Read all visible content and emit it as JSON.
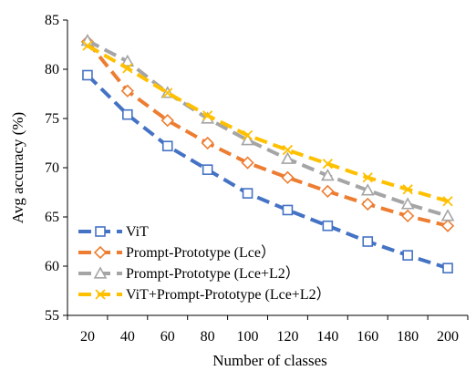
{
  "chart_data": {
    "type": "line",
    "title": "",
    "xlabel": "Number of classes",
    "ylabel": "Avg accuracy (%)",
    "x": [
      20,
      40,
      60,
      80,
      100,
      120,
      140,
      160,
      180,
      200
    ],
    "x_tick_labels": [
      "20",
      "40",
      "60",
      "80",
      "100",
      "120",
      "140",
      "160",
      "180",
      "200"
    ],
    "ylim": [
      55,
      85
    ],
    "y_ticks": [
      55,
      60,
      65,
      70,
      75,
      80,
      85
    ],
    "y_tick_labels": [
      "55",
      "60",
      "65",
      "70",
      "75",
      "80",
      "85"
    ],
    "grid": false,
    "legend_position": "bottom-left",
    "series": [
      {
        "name": "ViT",
        "color": "#4472C4",
        "marker": "square",
        "values": [
          79.4,
          75.4,
          72.2,
          69.8,
          67.4,
          65.7,
          64.1,
          62.5,
          61.1,
          59.8
        ]
      },
      {
        "name": "Prompt-Prototype (Lce）",
        "color": "#ED7D31",
        "marker": "diamond",
        "values": [
          82.8,
          77.8,
          74.8,
          72.5,
          70.5,
          69.0,
          67.6,
          66.3,
          65.1,
          64.1
        ]
      },
      {
        "name": "Prompt-Prototype (Lce+L2）",
        "color": "#A5A5A5",
        "marker": "triangle",
        "values": [
          82.9,
          80.8,
          77.6,
          75.0,
          72.8,
          70.9,
          69.2,
          67.7,
          66.3,
          65.1
        ]
      },
      {
        "name": "ViT+Prompt-Prototype (Lce+L2）",
        "color": "#FFC000",
        "marker": "x",
        "values": [
          82.4,
          80.1,
          77.6,
          75.3,
          73.3,
          71.8,
          70.4,
          69.0,
          67.8,
          66.6
        ]
      }
    ]
  }
}
